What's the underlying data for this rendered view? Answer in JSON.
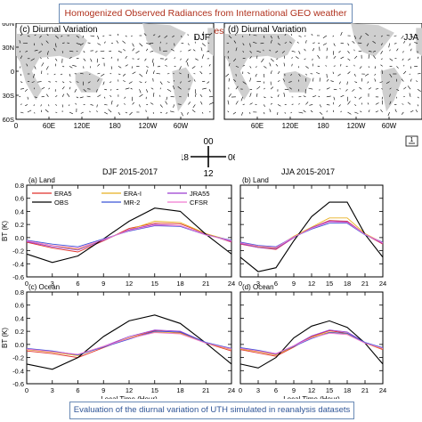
{
  "banner_top": "Homogenized Observed Radiances from International GEO weather satellites",
  "banner_bottom": "Evaluation of the diurnal variation of UTH simulated in reanalysis datasets",
  "maps": [
    {
      "label": "(c) Diurnal Variation",
      "season": "DJF"
    },
    {
      "label": "(d) Diurnal Variation",
      "season": "JJA"
    }
  ],
  "map_lat_ticks": [
    "60N",
    "30N",
    "0",
    "30S",
    "60S"
  ],
  "map_lon_ticks": [
    "60E",
    "120E",
    "180",
    "120W",
    "60W"
  ],
  "map_left_lon_ticks": [
    "0",
    "60E",
    "120E",
    "180",
    "120W",
    "60W"
  ],
  "map_vector_ref": "1",
  "clock": {
    "top": "00",
    "right": "06",
    "bottom": "12",
    "left": "18"
  },
  "panel_headers": {
    "left": "DJF 2015-2017",
    "right": "JJA 2015-2017"
  },
  "legend_items": [
    {
      "name": "ERA5",
      "color": "#e0322b"
    },
    {
      "name": "ERA-I",
      "color": "#e8b020"
    },
    {
      "name": "JRA55",
      "color": "#9a3bd0"
    },
    {
      "name": "OBS",
      "color": "#000000"
    },
    {
      "name": "MR-2",
      "color": "#3a55d8"
    },
    {
      "name": "CFSR",
      "color": "#f07ad0"
    }
  ],
  "chart_data": [
    {
      "type": "line",
      "title": "(a) Land",
      "xlabel": "",
      "ylabel": "BT (K)",
      "x": [
        0,
        3,
        6,
        9,
        12,
        15,
        18,
        21,
        24
      ],
      "xlim": [
        0,
        24
      ],
      "ylim": [
        -0.6,
        0.8
      ],
      "xticks": [
        0,
        3,
        6,
        9,
        12,
        15,
        18,
        21,
        24
      ],
      "yticks": [
        -0.6,
        -0.4,
        -0.2,
        0.0,
        0.2,
        0.4,
        0.6,
        0.8
      ],
      "series": [
        {
          "name": "ERA5",
          "color": "#e0322b",
          "values": [
            -0.07,
            -0.16,
            -0.22,
            -0.05,
            0.14,
            0.22,
            0.21,
            0.06,
            -0.07
          ]
        },
        {
          "name": "ERA-I",
          "color": "#e8b020",
          "values": [
            -0.05,
            -0.12,
            -0.18,
            -0.04,
            0.12,
            0.25,
            0.23,
            0.06,
            -0.05
          ]
        },
        {
          "name": "JRA55",
          "color": "#9a3bd0",
          "values": [
            -0.06,
            -0.14,
            -0.19,
            -0.04,
            0.12,
            0.2,
            0.18,
            0.05,
            -0.06
          ]
        },
        {
          "name": "OBS",
          "color": "#000000",
          "values": [
            -0.25,
            -0.38,
            -0.28,
            -0.02,
            0.25,
            0.45,
            0.4,
            0.05,
            -0.25
          ]
        },
        {
          "name": "MR-2",
          "color": "#3a55d8",
          "values": [
            -0.04,
            -0.1,
            -0.14,
            -0.02,
            0.1,
            0.18,
            0.17,
            0.04,
            -0.04
          ]
        },
        {
          "name": "CFSR",
          "color": "#f07ad0",
          "values": [
            -0.05,
            -0.12,
            -0.16,
            -0.03,
            0.11,
            0.19,
            0.18,
            0.04,
            -0.05
          ]
        }
      ]
    },
    {
      "type": "line",
      "title": "(b) Land",
      "xlabel": "",
      "ylabel": "",
      "x": [
        0,
        3,
        6,
        9,
        12,
        15,
        18,
        21,
        24
      ],
      "xlim": [
        0,
        24
      ],
      "ylim": [
        -0.6,
        0.8
      ],
      "xticks": [
        0,
        3,
        6,
        9,
        12,
        15,
        18,
        21,
        24
      ],
      "yticks": [
        -0.6,
        -0.4,
        -0.2,
        0.0,
        0.2,
        0.4,
        0.6,
        0.8
      ],
      "series": [
        {
          "name": "ERA5",
          "color": "#e0322b",
          "values": [
            -0.1,
            -0.15,
            -0.18,
            0.0,
            0.15,
            0.26,
            0.25,
            0.05,
            -0.1
          ]
        },
        {
          "name": "ERA-I",
          "color": "#e8b020",
          "values": [
            -0.08,
            -0.14,
            -0.16,
            0.02,
            0.16,
            0.3,
            0.3,
            0.06,
            -0.08
          ]
        },
        {
          "name": "JRA55",
          "color": "#9a3bd0",
          "values": [
            -0.09,
            -0.15,
            -0.17,
            0.0,
            0.15,
            0.25,
            0.24,
            0.05,
            -0.09
          ]
        },
        {
          "name": "OBS",
          "color": "#000000",
          "values": [
            -0.3,
            -0.52,
            -0.46,
            -0.05,
            0.32,
            0.54,
            0.54,
            0.05,
            -0.3
          ]
        },
        {
          "name": "MR-2",
          "color": "#3a55d8",
          "values": [
            -0.07,
            -0.12,
            -0.14,
            0.01,
            0.13,
            0.22,
            0.22,
            0.04,
            -0.07
          ]
        },
        {
          "name": "CFSR",
          "color": "#f07ad0",
          "values": [
            -0.08,
            -0.13,
            -0.15,
            0.01,
            0.14,
            0.24,
            0.23,
            0.05,
            -0.08
          ]
        }
      ]
    },
    {
      "type": "line",
      "title": "(c) Ocean",
      "xlabel": "Local Time (Hour)",
      "ylabel": "BT (K)",
      "x": [
        0,
        3,
        6,
        9,
        12,
        15,
        18,
        21,
        24
      ],
      "xlim": [
        0,
        24
      ],
      "ylim": [
        -0.6,
        0.8
      ],
      "xticks": [
        0,
        3,
        6,
        9,
        12,
        15,
        18,
        21,
        24
      ],
      "yticks": [
        -0.6,
        -0.4,
        -0.2,
        0.0,
        0.2,
        0.4,
        0.6,
        0.8
      ],
      "series": [
        {
          "name": "ERA5",
          "color": "#e0322b",
          "values": [
            -0.1,
            -0.14,
            -0.2,
            -0.05,
            0.1,
            0.21,
            0.18,
            0.02,
            -0.1
          ]
        },
        {
          "name": "ERA-I",
          "color": "#e8b020",
          "values": [
            -0.08,
            -0.12,
            -0.17,
            -0.03,
            0.1,
            0.19,
            0.17,
            0.02,
            -0.08
          ]
        },
        {
          "name": "JRA55",
          "color": "#9a3bd0",
          "values": [
            -0.07,
            -0.11,
            -0.16,
            -0.03,
            0.12,
            0.22,
            0.2,
            0.03,
            -0.07
          ]
        },
        {
          "name": "OBS",
          "color": "#000000",
          "values": [
            -0.3,
            -0.38,
            -0.2,
            0.12,
            0.36,
            0.45,
            0.32,
            0.02,
            -0.3
          ]
        },
        {
          "name": "MR-2",
          "color": "#3a55d8",
          "values": [
            -0.06,
            -0.1,
            -0.16,
            -0.04,
            0.08,
            0.2,
            0.19,
            0.03,
            -0.06
          ]
        },
        {
          "name": "CFSR",
          "color": "#f07ad0",
          "values": [
            -0.07,
            -0.11,
            -0.15,
            -0.03,
            0.09,
            0.18,
            0.16,
            0.02,
            -0.07
          ]
        }
      ]
    },
    {
      "type": "line",
      "title": "(d) Ocean",
      "xlabel": "Local Time (Hour)",
      "ylabel": "",
      "x": [
        0,
        3,
        6,
        9,
        12,
        15,
        18,
        21,
        24
      ],
      "xlim": [
        0,
        24
      ],
      "ylim": [
        -0.6,
        0.8
      ],
      "xticks": [
        0,
        3,
        6,
        9,
        12,
        15,
        18,
        21,
        24
      ],
      "yticks": [
        -0.6,
        -0.4,
        -0.2,
        0.0,
        0.2,
        0.4,
        0.6,
        0.8
      ],
      "series": [
        {
          "name": "ERA5",
          "color": "#e0322b",
          "values": [
            -0.08,
            -0.13,
            -0.18,
            -0.04,
            0.12,
            0.21,
            0.17,
            0.02,
            -0.08
          ]
        },
        {
          "name": "ERA-I",
          "color": "#e8b020",
          "values": [
            -0.07,
            -0.11,
            -0.16,
            -0.03,
            0.11,
            0.19,
            0.16,
            0.02,
            -0.07
          ]
        },
        {
          "name": "JRA55",
          "color": "#9a3bd0",
          "values": [
            -0.06,
            -0.1,
            -0.15,
            -0.02,
            0.13,
            0.22,
            0.19,
            0.03,
            -0.06
          ]
        },
        {
          "name": "OBS",
          "color": "#000000",
          "values": [
            -0.3,
            -0.36,
            -0.2,
            0.1,
            0.28,
            0.36,
            0.26,
            0.02,
            -0.3
          ]
        },
        {
          "name": "MR-2",
          "color": "#3a55d8",
          "values": [
            -0.05,
            -0.09,
            -0.14,
            -0.03,
            0.09,
            0.18,
            0.17,
            0.03,
            -0.05
          ]
        },
        {
          "name": "CFSR",
          "color": "#f07ad0",
          "values": [
            -0.06,
            -0.1,
            -0.14,
            -0.02,
            0.1,
            0.17,
            0.15,
            0.02,
            -0.06
          ]
        }
      ]
    }
  ]
}
